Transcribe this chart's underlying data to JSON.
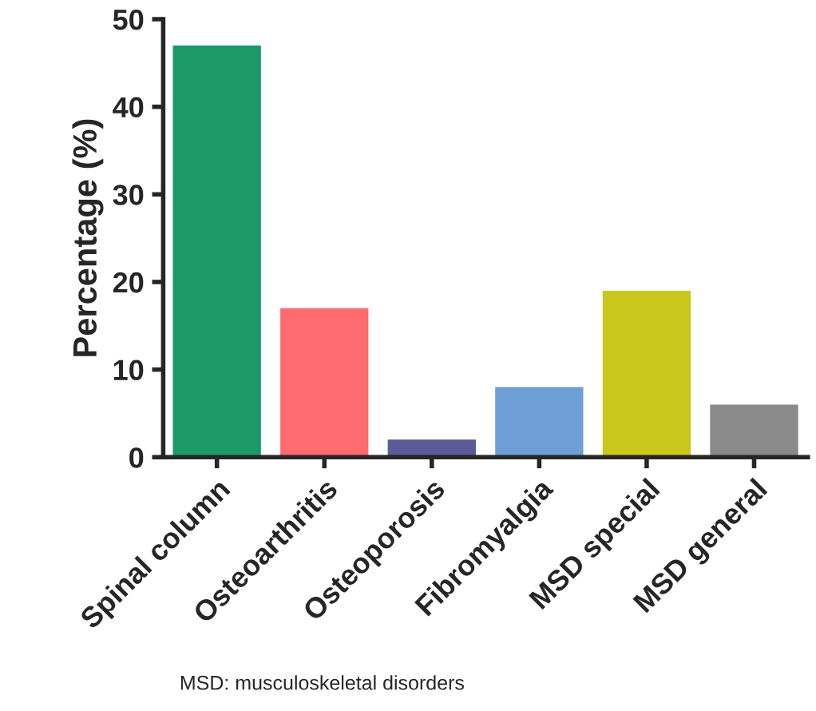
{
  "chart_data": {
    "type": "bar",
    "ylabel": "Percentage (%)",
    "categories": [
      "Spinal column",
      "Osteoarthritis",
      "Osteoporosis",
      "Fibromyalgia",
      "MSD special",
      "MSD general"
    ],
    "values": [
      47,
      17,
      2,
      8,
      19,
      6
    ],
    "colors": [
      "#1b9a68",
      "#ff6b6e",
      "#5b5b98",
      "#6d9fd6",
      "#c9c71c",
      "#8a8a8a"
    ],
    "ylim": [
      0,
      50
    ],
    "yticks": [
      0,
      10,
      20,
      30,
      40,
      50
    ],
    "grid": false,
    "annotations": [
      "MSD: musculoskeletal disorders"
    ]
  }
}
